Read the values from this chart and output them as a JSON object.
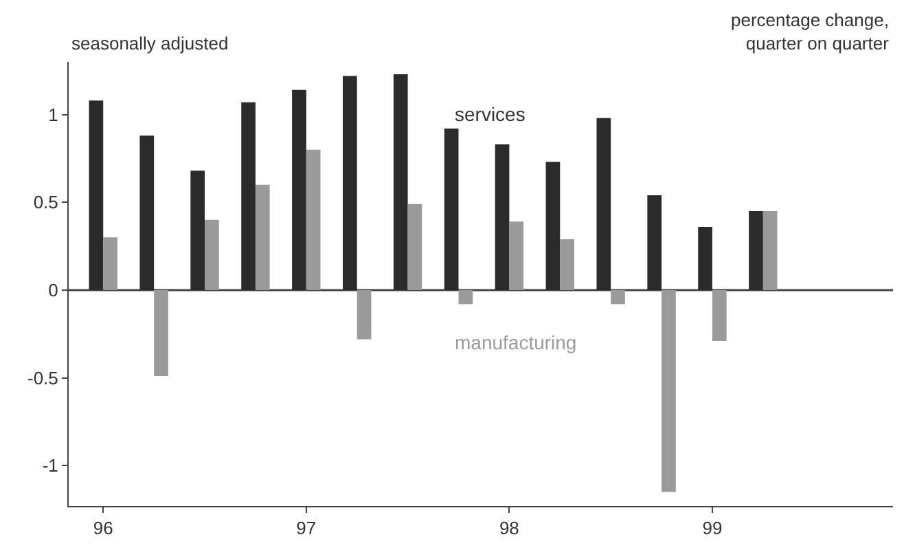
{
  "chart_data": {
    "type": "bar",
    "x": [
      1996.0,
      1996.25,
      1996.5,
      1996.75,
      1997.0,
      1997.25,
      1997.5,
      1997.75,
      1998.0,
      1998.25,
      1998.5,
      1998.75,
      1999.0,
      1999.25
    ],
    "series": [
      {
        "name": "services",
        "color": "#2b2b2b",
        "values": [
          1.08,
          0.88,
          0.68,
          1.07,
          1.14,
          1.22,
          1.23,
          0.92,
          0.83,
          0.73,
          0.98,
          0.54,
          0.36,
          0.45
        ]
      },
      {
        "name": "manufacturing",
        "color": "#9a9a9a",
        "values": [
          0.3,
          -0.49,
          0.4,
          0.6,
          0.8,
          -0.28,
          0.49,
          -0.08,
          0.39,
          0.29,
          -0.08,
          -1.15,
          -0.29,
          0.45
        ]
      }
    ],
    "xlim": [
      1995.83,
      1999.89
    ],
    "xticks": [
      {
        "value": 1996,
        "label": "96"
      },
      {
        "value": 1997,
        "label": "97"
      },
      {
        "value": 1998,
        "label": "98"
      },
      {
        "value": 1999,
        "label": "99"
      }
    ],
    "ylim": [
      -1.23,
      1.3
    ],
    "yticks": [
      {
        "value": -1,
        "label": "-1"
      },
      {
        "value": -0.5,
        "label": "-0.5"
      },
      0,
      0.5,
      1
    ],
    "annotations": [
      "seasonally adjusted",
      "percentage change,\nquarter on quarter"
    ],
    "ref_lines": [
      {
        "axis": "y",
        "value": 0,
        "color": "#444444"
      }
    ],
    "grid": false,
    "legend": false
  }
}
